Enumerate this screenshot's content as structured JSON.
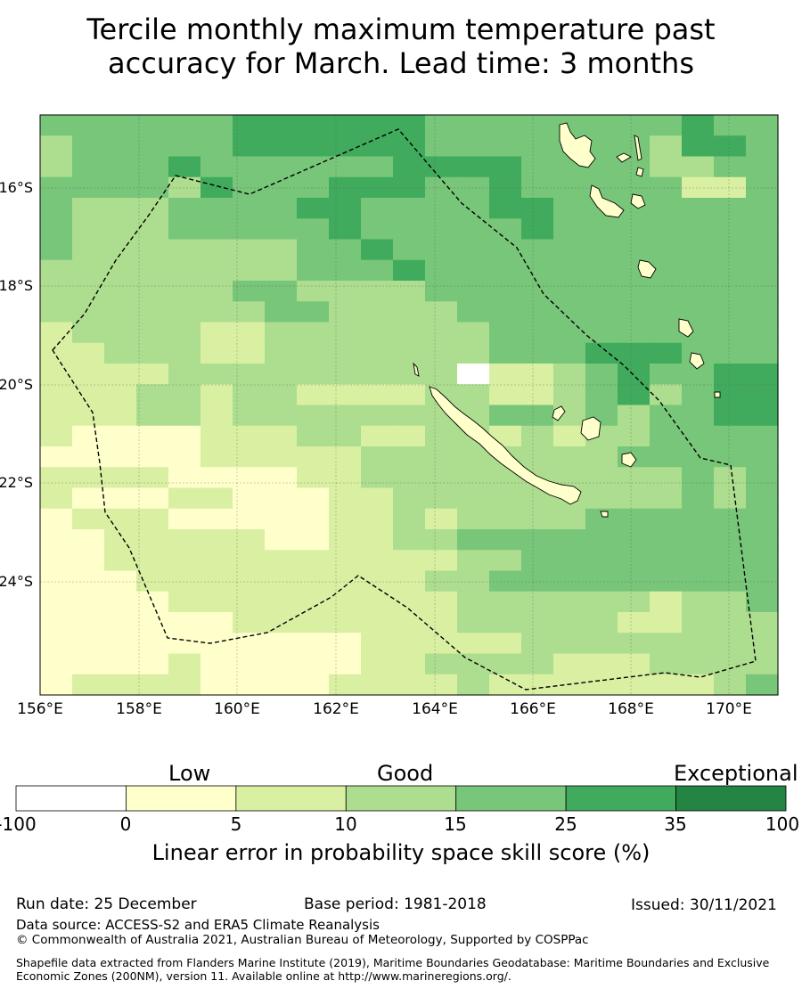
{
  "title": {
    "line1": "Tercile monthly maximum temperature past",
    "line2": "accuracy for March. Lead time: 3 months"
  },
  "map": {
    "lat_labels": [
      "16°S",
      "18°S",
      "20°S",
      "22°S",
      "24°S"
    ],
    "lon_labels": [
      "156°E",
      "158°E",
      "160°E",
      "162°E",
      "164°E",
      "166°E",
      "168°E",
      "170°E"
    ],
    "grid_origin": {
      "row0_lat": "north edge",
      "col0_lon": "156°E"
    },
    "cell_classes_legend": "0=white(<0), 1=0-5, 2=5-10, 3=10-15, 4=15-25, 5=25-35, 6=35-100",
    "grid": [
      "44444455555544444444544",
      "34444455555544444443554",
      "34445444444555544443344",
      "44443544455544544444224",
      "43334444554444554444444",
      "43334444454444454444444",
      "43333333445444444444444",
      "33333333444544444444444",
      "33333344333344444444444",
      "33333334433334444444444",
      "23333223333333444444444",
      "22333223333333444555444",
      "22223333333330223454455",
      "22233233222233223453455",
      "22233233333333443434455",
      "21111222332233232334444",
      "11111222223333333344444",
      "22221111223333333333434",
      "21112211122333333333434",
      "12221111122323333444444",
      "11222221122334444444444",
      "11222222222223344444444",
      "11122222222233444444444",
      "11112222222223333332334",
      "11111122222223333322333",
      "11111111112222233333333",
      "11112111112233332223333",
      "12222111122223222222234"
    ]
  },
  "colorbar": {
    "categories": [
      "Low",
      "Good",
      "Exceptional"
    ],
    "ticks": [
      "-100",
      "0",
      "5",
      "10",
      "15",
      "25",
      "35",
      "100"
    ],
    "colors": [
      "#ffffff",
      "#ffffcc",
      "#d9f0a3",
      "#addd8e",
      "#78c679",
      "#41ab5d",
      "#238443"
    ],
    "title": "Linear error in probability space skill score (%)"
  },
  "footer": {
    "run_date": "Run date: 25 December",
    "base_period": "Base period: 1981-2018",
    "issued": "Issued: 30/11/2021",
    "data_source": "Data source: ACCESS-S2 and ERA5 Climate Reanalysis",
    "copyright": "© Commonwealth of Australia 2021, Australian Bureau of Meteorology, Supported by COSPPac",
    "shapefile": "Shapefile data extracted from Flanders Marine Institute (2019), Maritime Boundaries Geodatabase: Maritime Boundaries and Exclusive Economic Zones (200NM), version 11. Available online at http://www.marineregions.org/."
  }
}
